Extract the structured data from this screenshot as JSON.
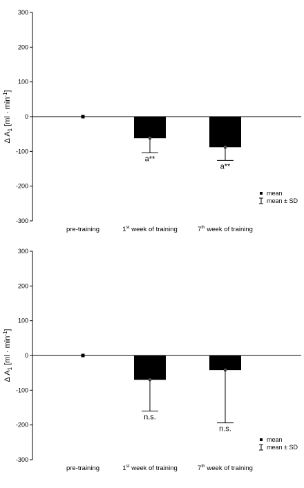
{
  "chart_data": [
    {
      "type": "bar",
      "ylabel_prefix": "Δ A",
      "ylabel_sub": "1",
      "ylabel_suffix": " [ml · min",
      "ylabel_sup": "-1",
      "ylabel_end": "]",
      "ylim": [
        -300,
        300
      ],
      "yticks": [
        "300",
        "200",
        "100",
        "0",
        "-100",
        "-200",
        "-300"
      ],
      "categories": [
        {
          "pre": "pre-training",
          "sup": "",
          "post": ""
        },
        {
          "pre": "1",
          "sup": "st",
          "post": " week of training"
        },
        {
          "pre": "7",
          "sup": "th",
          "post": " week of training"
        }
      ],
      "values": [
        0,
        -62,
        -88
      ],
      "sd": [
        0,
        42,
        38
      ],
      "annotations": [
        "",
        "a**",
        "a**"
      ],
      "legend": {
        "mean": "mean",
        "sd": "mean ± SD"
      }
    },
    {
      "type": "bar",
      "ylabel_prefix": "Δ A",
      "ylabel_sub": "1",
      "ylabel_suffix": " [ml · min",
      "ylabel_sup": "-1",
      "ylabel_end": "]",
      "ylim": [
        -300,
        300
      ],
      "yticks": [
        "300",
        "200",
        "100",
        "0",
        "-100",
        "-200",
        "-300"
      ],
      "categories": [
        {
          "pre": "pre-training",
          "sup": "",
          "post": ""
        },
        {
          "pre": "1",
          "sup": "st",
          "post": " week of training"
        },
        {
          "pre": "7",
          "sup": "th",
          "post": " week of training"
        }
      ],
      "values": [
        0,
        -70,
        -42
      ],
      "sd": [
        0,
        90,
        152
      ],
      "annotations": [
        "",
        "n.s.",
        "n.s."
      ],
      "legend": {
        "mean": "mean",
        "sd": "mean ± SD"
      }
    }
  ]
}
